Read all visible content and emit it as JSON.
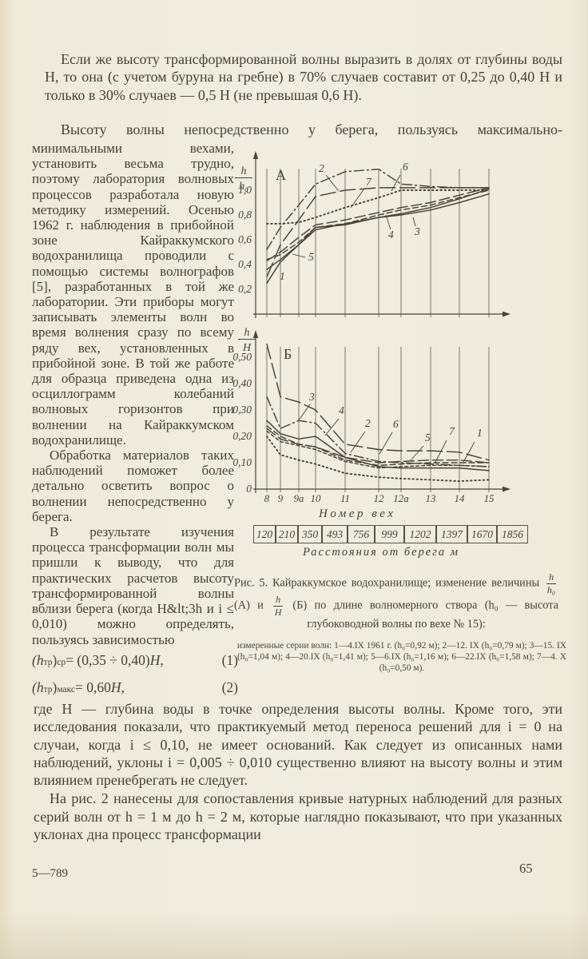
{
  "page": {
    "para1": "Если же высоту трансформированной волны выразить в долях от глубины воды H, то она (с учетом буруна на гребне) в 70% случаев составит от 0,25 до 0,40 H и только в 30% случаев — 0,5 H (не превышая 0,6 H).",
    "para2_first_line": "Высоту волны непосредственно у берега, пользуясь максимально-",
    "left_column": {
      "p1": "минимальными вехами, установить весьма трудно, поэтому лаборатория волновых процессов разработала новую методику измерений. Осенью 1962 г. наблюдения в прибойной зоне Кайраккумского водохранилища проводили с помощью системы волнографов [5], разработанных в той же лаборатории. Эти приборы могут записывать элементы волн во время волнения сразу по всему ряду вех, установленных в прибойной зоне. В той же работе для образца приведена одна из осциллограмм колебаний волновых горизонтов при волнении на Кайраккумском водохранилище.",
      "p2": "Обработка материалов таких наблюдений поможет более детально осветить вопрос о волнении непосредственно у берега.",
      "p3": "В результате изучения процесса трансформации волн мы пришли к выводу, что для практических расчетов высоту трансформированной волны вблизи берега (когда H&lt;3h и i ≤ 0,010) можно определять, пользуясь зависимостью"
    },
    "formulas": [
      {
        "t1": "(h",
        "sub1": "тр",
        "t2": ")",
        "sub2": "ср",
        "mid": " = (0,35 ÷ 0,40) ",
        "var": "H",
        "comma": ",",
        "num": "(1)"
      },
      {
        "t1": "(h",
        "sub1": "тр",
        "t2": ")",
        "sub2": "макс",
        "mid": " = 0,60 ",
        "var": "H",
        "comma": ",",
        "num": "(2)"
      }
    ],
    "para_where": "где H — глубина воды в точке определения высоты волны. Кроме того, эти исследования показали, что практикуемый метод переноса решений для i = 0 на случаи, когда i ≤ 0,10, не имеет оснований. Как следует из описанных нами наблюдений, уклоны i = 0,005 ÷ 0,010 существенно влияют на высоту волны и этим влиянием пренебрегать не следует.",
    "para_last": "На рис. 2 нанесены для сопоставления кривые натурных наблюдений для разных серий волн от h = 1 м до h = 2 м, которые наглядно показывают, что при указанных уклонах дна процесс трансформации",
    "footer_left": "5—789",
    "page_number": "65"
  },
  "figure": {
    "xaxis_title": "Номер вех",
    "distance_values": [
      "120",
      "210",
      "350",
      "493",
      "756",
      "999",
      "1202",
      "1397",
      "1670",
      "1856"
    ],
    "distance_label": "Расстояния от берега м",
    "caption": {
      "part1": "Рис. 5. Кайраккумское водохранилище; изменение величины ",
      "frac1_num": "h",
      "frac1_den": "h₀",
      "part2": " (А) и ",
      "frac2_num": "h",
      "frac2_den": "H",
      "part3": " (Б) по длине волномерного створа (h₀ — высота глубоководной волны по вехе № 15):"
    },
    "legend": "измеренные серии волн: 1—4.IX 1961 г. (h₀=0,92 м); 2—12. IX (h₀=0,79 м); 3—15. IX (h₀=1,04 м); 4—20.IX (h₀=1,41 м); 5—6.IX (h₀=1,16 м); 6—22.IX (h₀=1,58 м); 7—4. X (h₀=0,50 м)."
  },
  "chart_data": [
    {
      "type": "line",
      "panel_label": "А",
      "ylabel": "h/h₀",
      "ylabel_num": "h",
      "ylabel_den": "h₀",
      "xlabel": "Номер вех",
      "x_categories": [
        "8",
        "9",
        "9а",
        "10",
        "11",
        "12",
        "12а",
        "13",
        "14",
        "15"
      ],
      "ylim": [
        0,
        1.2
      ],
      "grid": "vertical-only",
      "yticks": [
        {
          "label": "1,0",
          "value": 1.0
        },
        {
          "label": "0,8",
          "value": 0.8
        },
        {
          "label": "0,6",
          "value": 0.6
        },
        {
          "label": "0,4",
          "value": 0.4
        },
        {
          "label": "0,2",
          "value": 0.2
        }
      ],
      "series": [
        {
          "name": "1",
          "style": "solid",
          "values": [
            0.25,
            0.42,
            0.56,
            0.68,
            0.73,
            0.78,
            0.81,
            0.86,
            0.93,
            1.01
          ]
        },
        {
          "name": "2",
          "style": "dashdot",
          "values": [
            0.52,
            0.7,
            0.88,
            1.05,
            1.15,
            1.17,
            1.05,
            1.03,
            1.02,
            1.02
          ]
        },
        {
          "name": "3",
          "style": "solid",
          "values": [
            0.36,
            0.44,
            0.56,
            0.7,
            0.72,
            0.78,
            0.8,
            0.84,
            0.9,
            0.97
          ]
        },
        {
          "name": "4",
          "style": "longdash",
          "values": [
            0.43,
            0.5,
            0.62,
            0.72,
            0.76,
            0.82,
            0.86,
            0.9,
            0.96,
            1.02
          ]
        },
        {
          "name": "5",
          "style": "dash",
          "values": [
            0.44,
            0.48,
            0.58,
            0.7,
            0.73,
            0.8,
            0.84,
            0.88,
            0.94,
            1.0
          ]
        },
        {
          "name": "6",
          "style": "longdash2",
          "values": [
            0.3,
            0.56,
            0.76,
            0.95,
            1.0,
            1.02,
            1.02,
            1.02,
            1.02,
            1.02
          ]
        },
        {
          "name": "7",
          "style": "dot",
          "values": [
            0.73,
            0.73,
            0.74,
            0.78,
            0.86,
            0.94,
            1.0,
            1.0,
            1.0,
            1.0
          ]
        }
      ]
    },
    {
      "type": "line",
      "panel_label": "Б",
      "ylabel": "h/H",
      "ylabel_num": "h",
      "ylabel_den": "H",
      "xlabel": "Номер вех",
      "x_categories": [
        "8",
        "9",
        "9а",
        "10",
        "11",
        "12",
        "12а",
        "13",
        "14",
        "15"
      ],
      "ylim": [
        0,
        0.55
      ],
      "grid": "vertical-only",
      "yticks": [
        {
          "label": "0,50",
          "value": 0.5
        },
        {
          "label": "0,40",
          "value": 0.4
        },
        {
          "label": "0,30",
          "value": 0.3
        },
        {
          "label": "0,20",
          "value": 0.2
        },
        {
          "label": "0,10",
          "value": 0.1
        },
        {
          "label": "0",
          "value": 0.0
        }
      ],
      "series": [
        {
          "name": "1",
          "style": "solid",
          "values": [
            0.26,
            0.21,
            0.19,
            0.2,
            0.12,
            0.085,
            0.08,
            0.08,
            0.08,
            0.07
          ]
        },
        {
          "name": "2",
          "style": "dash",
          "values": [
            0.24,
            0.2,
            0.17,
            0.16,
            0.11,
            0.09,
            0.095,
            0.1,
            0.1,
            0.1
          ]
        },
        {
          "name": "3",
          "style": "longdash2",
          "values": [
            0.55,
            0.35,
            0.33,
            0.3,
            0.17,
            0.15,
            0.145,
            0.145,
            0.14,
            0.11
          ]
        },
        {
          "name": "4",
          "style": "dashdot",
          "values": [
            0.35,
            0.23,
            0.26,
            0.25,
            0.135,
            0.105,
            0.1,
            0.095,
            0.09,
            0.085
          ]
        },
        {
          "name": "5",
          "style": "shortdash",
          "values": [
            0.22,
            0.18,
            0.165,
            0.15,
            0.105,
            0.08,
            0.085,
            0.09,
            0.09,
            0.085
          ]
        },
        {
          "name": "6",
          "style": "longdash",
          "values": [
            0.23,
            0.19,
            0.17,
            0.16,
            0.12,
            0.1,
            0.105,
            0.11,
            0.11,
            0.1
          ]
        },
        {
          "name": "7",
          "style": "dot",
          "values": [
            0.2,
            0.13,
            0.11,
            0.095,
            0.06,
            0.045,
            0.04,
            0.035,
            0.03,
            0.035
          ]
        }
      ]
    }
  ]
}
